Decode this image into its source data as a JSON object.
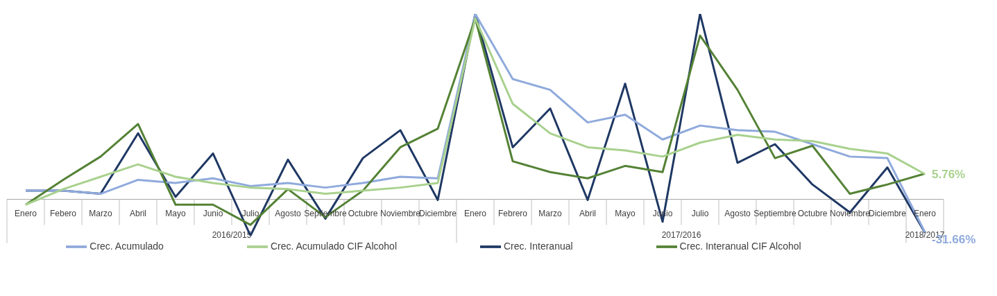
{
  "chart_data": {
    "type": "line",
    "tick_labels": "x",
    "legend": "bottom",
    "marker": "none",
    "line_style": "solid",
    "categories": [
      "Enero",
      "Febero",
      "Marzo",
      "Abril",
      "Mayo",
      "Junio",
      "Julio",
      "Agosto",
      "Septiembre",
      "Octubre",
      "Noviembre",
      "Diciembre",
      "Enero",
      "Febrero",
      "Marzo",
      "Abril",
      "Mayo",
      "Junio",
      "Julio",
      "Agosto",
      "Septiembre",
      "Octubre",
      "Noviembre",
      "Diciembre",
      "Enero"
    ],
    "annotations": [
      "2016/2015",
      "2017/2016",
      "2018/2017"
    ],
    "series": [
      {
        "name": "Crec. Interanual",
        "color": "#1f3864",
        "values": [
          -5,
          -5,
          -7,
          32,
          -9,
          19,
          -34,
          15,
          -23,
          16,
          34,
          -11,
          109,
          23,
          48,
          -11,
          64,
          -25,
          109,
          13,
          25,
          -1,
          -19,
          10,
          -32
        ]
      },
      {
        "name": "Crec. Acumulado",
        "color": "#8faadc",
        "values": [
          -5,
          -5,
          -7,
          2,
          0,
          3,
          -2,
          0,
          -3,
          0,
          4,
          3,
          109,
          67,
          60,
          39,
          44,
          28,
          37,
          34,
          33,
          25,
          17,
          16,
          -31.66
        ],
        "value_labels": [
          null,
          null,
          null,
          null,
          null,
          null,
          null,
          null,
          null,
          null,
          null,
          null,
          null,
          null,
          null,
          null,
          null,
          null,
          null,
          null,
          null,
          null,
          null,
          null,
          "-31.66%"
        ]
      },
      {
        "name": "Crec. Interanual CIF Alcohol",
        "color": "#548235",
        "values": [
          -14,
          2,
          17,
          38,
          -14,
          -14,
          -27,
          -4,
          -22,
          -5,
          23,
          35,
          106,
          14,
          7,
          3,
          11,
          7,
          95,
          60,
          16,
          24,
          -7,
          -1,
          6
        ]
      },
      {
        "name": "Crec. Acumulado CIF Alcohol",
        "color": "#a9d18e",
        "values": [
          -14,
          -4,
          4,
          12,
          4,
          0,
          -3,
          -4,
          -7,
          -5,
          -3,
          0,
          106,
          51,
          32,
          23,
          21,
          17,
          26,
          31,
          28,
          27,
          22,
          19,
          5.76
        ],
        "value_labels": [
          null,
          null,
          null,
          null,
          null,
          null,
          null,
          null,
          null,
          null,
          null,
          null,
          null,
          null,
          null,
          null,
          null,
          null,
          null,
          null,
          null,
          null,
          null,
          null,
          "5.76%"
        ]
      }
    ]
  }
}
